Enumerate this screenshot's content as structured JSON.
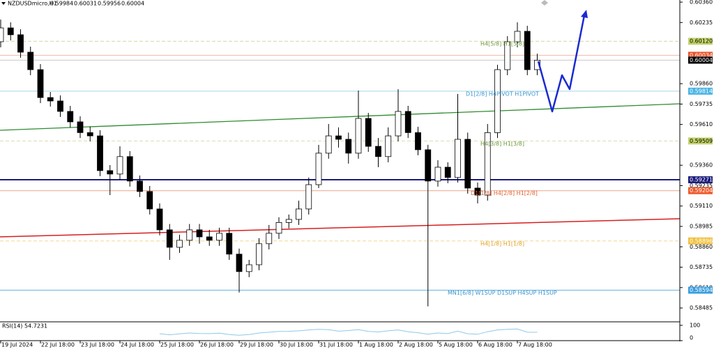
{
  "chart_data": {
    "type": "candlestick",
    "title": "NZDUSDmicro,H1",
    "header_ohlc": [
      0.59984,
      0.60031,
      0.59956,
      0.60004
    ],
    "ylim": [
      0.584,
      0.60373
    ],
    "xlim": [
      -0.07,
      68.35
    ],
    "yticks": [
      {
        "value": 0.6036,
        "label": "0.60360"
      },
      {
        "value": 0.60235,
        "label": "0.60235"
      },
      {
        "value": 0.5986,
        "label": "0.59860"
      },
      0.59735,
      {
        "value": 0.5961,
        "label": "0.59610"
      },
      {
        "value": 0.5936,
        "label": "0.59360"
      },
      0.59235,
      {
        "value": 0.5911,
        "label": "0.59110"
      },
      0.58985,
      {
        "value": 0.5886,
        "label": "0.58860"
      },
      0.58735,
      {
        "value": 0.5861,
        "label": "0.58610"
      },
      0.58485
    ],
    "xticks": [
      {
        "value": 0,
        "label": "19 Jul 2024"
      },
      {
        "value": 4,
        "label": "22 Jul 18:00"
      },
      {
        "value": 8,
        "label": "23 Jul 18:00"
      },
      {
        "value": 12,
        "label": "24 Jul 18:00"
      },
      {
        "value": 16,
        "label": "25 Jul 18:00"
      },
      {
        "value": 20,
        "label": "26 Jul 18:00"
      },
      {
        "value": 24,
        "label": "29 Jul 18:00"
      },
      {
        "value": 28,
        "label": "30 Jul 18:00"
      },
      {
        "value": 32,
        "label": "31 Jul 18:00"
      },
      {
        "value": 36,
        "label": "1 Aug 18:00"
      },
      {
        "value": 40,
        "label": "2 Aug 18:00"
      },
      {
        "value": 44,
        "label": "5 Aug 18:00"
      },
      {
        "value": 48,
        "label": "6 Aug 18:00"
      },
      {
        "value": 52,
        "label": "7 Aug 18:00"
      }
    ],
    "up_color": "#ffffff",
    "down_color": "#000000",
    "ohlc": [
      [
        0.60117,
        0.60253,
        0.60083,
        0.60202
      ],
      [
        0.60202,
        0.60236,
        0.60125,
        0.6016
      ],
      [
        0.6016,
        0.60194,
        0.60019,
        0.60053
      ],
      [
        0.60053,
        0.60087,
        0.59912,
        0.59946
      ],
      [
        0.59946,
        0.5998,
        0.59741,
        0.59775
      ],
      [
        0.59775,
        0.59809,
        0.5972,
        0.59754
      ],
      [
        0.59754,
        0.59788,
        0.59656,
        0.5969
      ],
      [
        0.5969,
        0.59724,
        0.59592,
        0.59626
      ],
      [
        0.59626,
        0.5966,
        0.59527,
        0.5956
      ],
      [
        0.5956,
        0.59596,
        0.59506,
        0.5954
      ],
      [
        0.5954,
        0.59575,
        0.59293,
        0.59327
      ],
      [
        0.59327,
        0.59361,
        0.59177,
        0.59306
      ],
      [
        0.59306,
        0.59476,
        0.59271,
        0.59413
      ],
      [
        0.59413,
        0.59447,
        0.59229,
        0.59263
      ],
      [
        0.59263,
        0.59297,
        0.59165,
        0.59199
      ],
      [
        0.59199,
        0.59233,
        0.59058,
        0.59092
      ],
      [
        0.59092,
        0.59126,
        0.5893,
        0.58964
      ],
      [
        0.58964,
        0.59,
        0.5878,
        0.58857
      ],
      [
        0.58857,
        0.58934,
        0.58823,
        0.589
      ],
      [
        0.589,
        0.59,
        0.58866,
        0.58964
      ],
      [
        0.58964,
        0.59,
        0.58879,
        0.58921
      ],
      [
        0.58921,
        0.58964,
        0.58866,
        0.589
      ],
      [
        0.589,
        0.58977,
        0.58866,
        0.58943
      ],
      [
        0.58943,
        0.58977,
        0.5878,
        0.58815
      ],
      [
        0.58815,
        0.58849,
        0.5858,
        0.58708
      ],
      [
        0.58708,
        0.5878,
        0.58674,
        0.5875
      ],
      [
        0.5875,
        0.58913,
        0.58716,
        0.58879
      ],
      [
        0.58879,
        0.58994,
        0.58844,
        0.58943
      ],
      [
        0.58943,
        0.59041,
        0.58908,
        0.59009
      ],
      [
        0.59009,
        0.59058,
        0.58973,
        0.59028
      ],
      [
        0.59028,
        0.59143,
        0.58994,
        0.59092
      ],
      [
        0.59092,
        0.59285,
        0.59058,
        0.59241
      ],
      [
        0.59241,
        0.59485,
        0.5922,
        0.59434
      ],
      [
        0.59434,
        0.59613,
        0.594,
        0.5954
      ],
      [
        0.5954,
        0.59592,
        0.59468,
        0.59519
      ],
      [
        0.59519,
        0.5956,
        0.5937,
        0.59434
      ],
      [
        0.59434,
        0.59818,
        0.594,
        0.59647
      ],
      [
        0.59647,
        0.59681,
        0.59442,
        0.59476
      ],
      [
        0.59476,
        0.59527,
        0.59348,
        0.59413
      ],
      [
        0.59413,
        0.59592,
        0.59378,
        0.5954
      ],
      [
        0.5954,
        0.59826,
        0.59506,
        0.5969
      ],
      [
        0.5969,
        0.59724,
        0.59527,
        0.5956
      ],
      [
        0.5956,
        0.59596,
        0.59421,
        0.59455
      ],
      [
        0.59455,
        0.59485,
        0.58495,
        0.59263
      ],
      [
        0.59263,
        0.59391,
        0.59229,
        0.59348
      ],
      [
        0.59348,
        0.59378,
        0.5925,
        0.59285
      ],
      [
        0.59285,
        0.59797,
        0.59254,
        0.59519
      ],
      [
        0.59519,
        0.5956,
        0.59186,
        0.5922
      ],
      [
        0.5922,
        0.59254,
        0.59126,
        0.59177
      ],
      [
        0.59177,
        0.59613,
        0.59143,
        0.5956
      ],
      [
        0.5956,
        0.59976,
        0.59527,
        0.59946
      ],
      [
        0.59946,
        0.60151,
        0.59912,
        0.60117
      ],
      [
        0.60117,
        0.60236,
        0.60083,
        0.60181
      ],
      [
        0.60181,
        0.60215,
        0.59912,
        0.59946
      ],
      [
        0.59946,
        0.60044,
        0.59912,
        0.60004
      ]
    ],
    "levels": [
      {
        "price": 0.6012,
        "price_label": "0.60120",
        "color": "#d6d6a0",
        "box": "#c3d36a",
        "text_color": "#000000",
        "dashed": true,
        "annotation": "H4[5/8] H1[5/8]",
        "annotation_color": "#6a9a3a"
      },
      {
        "price": 0.60034,
        "color": "#f2b8a4",
        "box": "#e8522a",
        "text_color": "#ffffff",
        "dashed": false
      },
      {
        "price": 0.60004,
        "color": "#c8c8c8",
        "box": "#000000",
        "text_color": "#ffffff",
        "dashed": false
      },
      {
        "price": 0.59814,
        "color": "#a8d8ea",
        "box": "#4ab4e4",
        "text_color": "#ffffff",
        "dashed": false,
        "annotation": "D1[2/8] H4PIVOT H1PIVOT",
        "annotation_color": "#3a94cc"
      },
      {
        "price": 0.59509,
        "color": "#dcdcb0",
        "box": "#c3d36a",
        "text_color": "#000000",
        "dashed": true,
        "annotation": "H4[3/8] H1[3/8]",
        "annotation_color": "#6a9a3a"
      },
      {
        "price": 0.59271,
        "color": "#1c1c7c",
        "box": "#1c1c7c",
        "text_color": "#ffffff",
        "dashed": false,
        "width": 2
      },
      {
        "price": 0.59204,
        "color": "#f0a48a",
        "box": "#ee5a2c",
        "text_color": "#ffffff",
        "dashed": false,
        "annotation": "D1[1/8] H4[2/8] H1[2/8]",
        "annotation_color": "#e06030"
      },
      {
        "price": 0.58896,
        "color": "#f0d890",
        "box": "#f0c040",
        "text_color": "#ffffff",
        "dashed": true,
        "annotation": "H4[1/8] H1[1/8]",
        "annotation_color": "#e0a020"
      },
      {
        "price": 0.58594,
        "color": "#60b0e0",
        "box": "#3a9ee0",
        "text_color": "#ffffff",
        "dashed": false,
        "annotation": "MN1[6/8] W1SUP D1SUP H4SUP H1SUP",
        "annotation_color": "#3a94cc"
      }
    ],
    "rsi": {
      "name": "RSI(14)",
      "color": "#8ec8e8",
      "ylim": [
        0,
        100
      ],
      "yticks": [
        100,
        0
      ],
      "values": [
        null,
        null,
        null,
        null,
        null,
        null,
        null,
        null,
        null,
        null,
        null,
        null,
        null,
        null,
        null,
        null,
        45,
        38,
        44,
        50,
        47,
        46,
        49,
        40,
        35,
        40,
        50,
        55,
        60,
        61,
        64,
        70,
        74,
        72,
        62,
        66,
        72,
        60,
        57,
        64,
        70,
        58,
        52,
        42,
        50,
        46,
        62,
        45,
        42,
        58,
        70,
        74,
        76,
        55,
        54.7231
      ]
    }
  }
}
